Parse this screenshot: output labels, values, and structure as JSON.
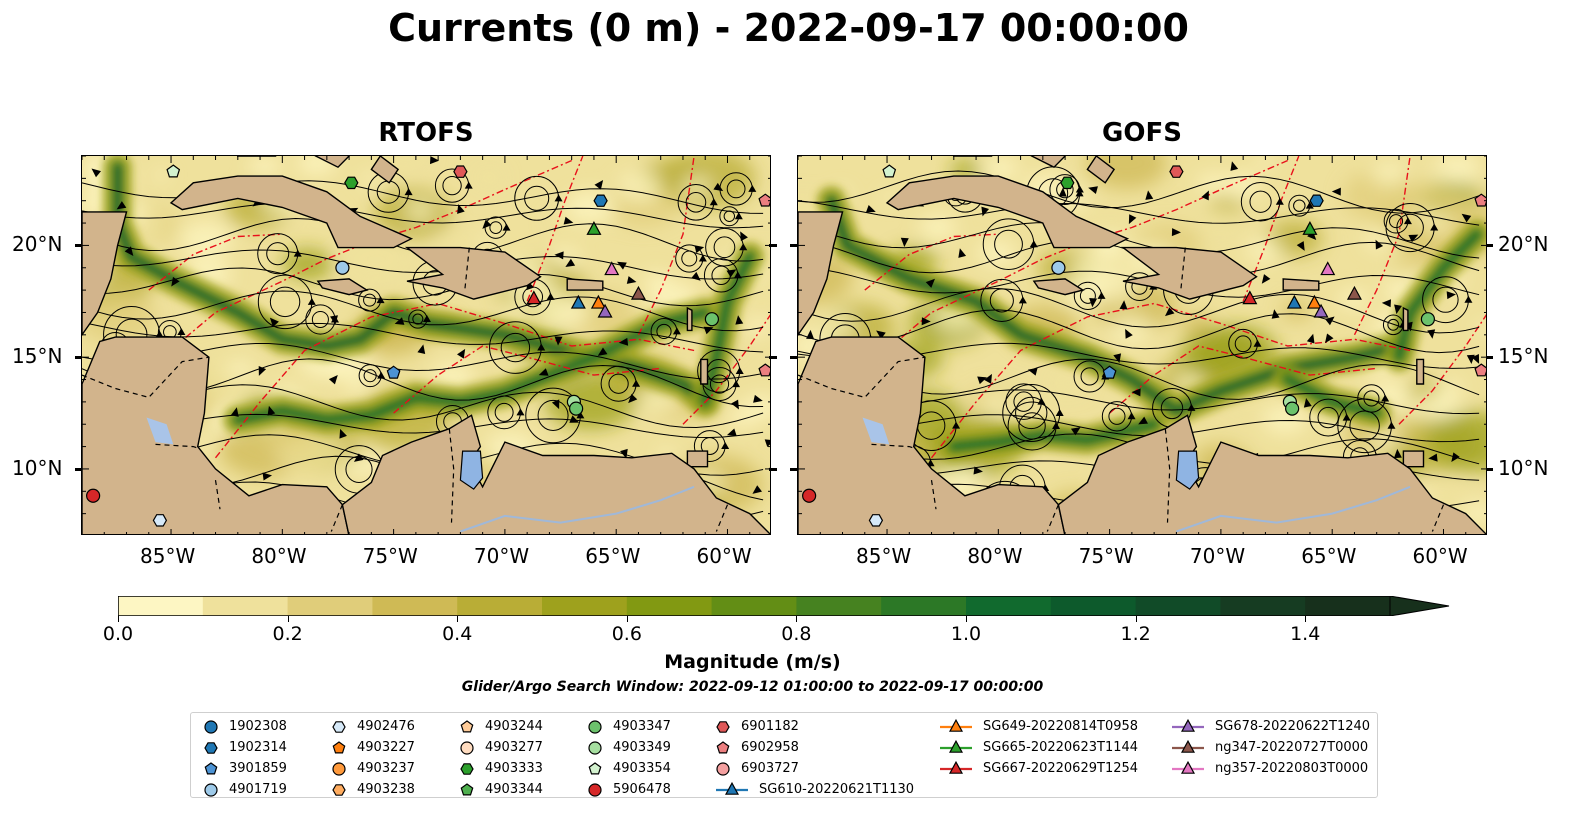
{
  "title": "Currents (0 m) - 2022-09-17 00:00:00",
  "panels": [
    {
      "title": "RTOFS"
    },
    {
      "title": "GOFS"
    }
  ],
  "lon_ticks": [
    "85°W",
    "80°W",
    "75°W",
    "70°W",
    "65°W",
    "60°W"
  ],
  "lat_ticks": [
    "20°N",
    "15°N",
    "10°N"
  ],
  "extent": {
    "lon_min": -89,
    "lon_max": -58,
    "lat_min": 7,
    "lat_max": 24
  },
  "colorbar": {
    "label": "Magnitude (m/s)",
    "ticks": [
      "0.0",
      "0.2",
      "0.4",
      "0.6",
      "0.8",
      "1.0",
      "1.2",
      "1.4"
    ],
    "range": [
      0,
      1.5
    ],
    "extend": "max",
    "colors": [
      "#fdf6c3",
      "#efe19c",
      "#e0cd7a",
      "#cfba55",
      "#b9ad36",
      "#9ea11d",
      "#829912",
      "#638e15",
      "#468220",
      "#2c7826",
      "#116a2e",
      "#0d5a2c",
      "#114b28",
      "#163c22",
      "#17301c"
    ]
  },
  "search_window": "Glider/Argo Search Window: 2022-09-12 01:00:00 to 2022-09-17 00:00:00",
  "legend": [
    {
      "label": "1902308",
      "marker": "circle",
      "color": "#1f77b4"
    },
    {
      "label": "1902314",
      "marker": "hexagon",
      "color": "#1f77b4"
    },
    {
      "label": "3901859",
      "marker": "pentagon",
      "color": "#4c93d4"
    },
    {
      "label": "4901719",
      "marker": "circle",
      "color": "#9ecae9"
    },
    {
      "label": "4902476",
      "marker": "hexagon",
      "color": "#d6e9f8"
    },
    {
      "label": "4903227",
      "marker": "pentagon",
      "color": "#ff7f0e"
    },
    {
      "label": "4903237",
      "marker": "circle",
      "color": "#ff9a3c"
    },
    {
      "label": "4903238",
      "marker": "hexagon",
      "color": "#ffac5f"
    },
    {
      "label": "4903244",
      "marker": "pentagon",
      "color": "#ffcc99"
    },
    {
      "label": "4903277",
      "marker": "circle",
      "color": "#ffdcc0"
    },
    {
      "label": "4903333",
      "marker": "hexagon",
      "color": "#2ca02c"
    },
    {
      "label": "4903344",
      "marker": "pentagon",
      "color": "#4fb04f"
    },
    {
      "label": "4903347",
      "marker": "circle",
      "color": "#6cc26c"
    },
    {
      "label": "4903349",
      "marker": "circle",
      "color": "#a6dfa0"
    },
    {
      "label": "4903354",
      "marker": "pentagon",
      "color": "#d3f2cf"
    },
    {
      "label": "5906478",
      "marker": "circle",
      "color": "#d62728"
    },
    {
      "label": "6901182",
      "marker": "hexagon",
      "color": "#e05858"
    },
    {
      "label": "6902958",
      "marker": "pentagon",
      "color": "#ec7f80"
    },
    {
      "label": "6903727",
      "marker": "circle",
      "color": "#f4a0a0"
    },
    {
      "label": "SG610-20220621T1130",
      "marker": "triangle",
      "color": "#1f77b4"
    },
    {
      "label": "SG649-20220814T0958",
      "marker": "triangle",
      "color": "#ff7f0e"
    },
    {
      "label": "SG665-20220623T1144",
      "marker": "triangle",
      "color": "#2ca02c"
    },
    {
      "label": "SG667-20220629T1254",
      "marker": "triangle",
      "color": "#d62728"
    },
    {
      "label": "SG678-20220622T1240",
      "marker": "triangle",
      "color": "#9467bd"
    },
    {
      "label": "ng347-20220727T0000",
      "marker": "triangle",
      "color": "#8c564b"
    },
    {
      "label": "ng357-20220803T0000",
      "marker": "triangle",
      "color": "#e377c2"
    }
  ],
  "markers": [
    {
      "label": "4903354",
      "lon": -84.9,
      "lat": 23.3
    },
    {
      "label": "4903333",
      "lon": -76.9,
      "lat": 22.8
    },
    {
      "label": "6901182",
      "lon": -72.0,
      "lat": 23.3
    },
    {
      "label": "1902314",
      "lon": -65.7,
      "lat": 22.0
    },
    {
      "label": "6902958",
      "lon": -58.3,
      "lat": 22.0
    },
    {
      "label": "4901719",
      "lon": -77.3,
      "lat": 19.0
    },
    {
      "label": "3901859",
      "lon": -75.0,
      "lat": 14.3
    },
    {
      "label": "4903347",
      "lon": -60.7,
      "lat": 16.7
    },
    {
      "label": "4903349",
      "lon": -66.9,
      "lat": 13.0
    },
    {
      "label": "4903347",
      "lon": -66.8,
      "lat": 12.7
    },
    {
      "label": "6902958",
      "lon": -58.3,
      "lat": 14.4
    },
    {
      "label": "5906478",
      "lon": -88.5,
      "lat": 8.8
    },
    {
      "label": "4902476",
      "lon": -85.5,
      "lat": 7.7
    },
    {
      "label": "SG665-20220623T1144",
      "lon": -66.0,
      "lat": 20.7
    },
    {
      "label": "ng357-20220803T0000",
      "lon": -65.2,
      "lat": 18.9
    },
    {
      "label": "ng347-20220727T0000",
      "lon": -64.0,
      "lat": 17.8
    },
    {
      "label": "SG667-20220629T1254",
      "lon": -68.7,
      "lat": 17.6
    },
    {
      "label": "SG610-20220621T1130",
      "lon": -66.7,
      "lat": 17.4
    },
    {
      "label": "SG649-20220814T0958",
      "lon": -65.8,
      "lat": 17.4
    },
    {
      "label": "SG678-20220622T1240",
      "lon": -65.5,
      "lat": 17.0
    }
  ]
}
